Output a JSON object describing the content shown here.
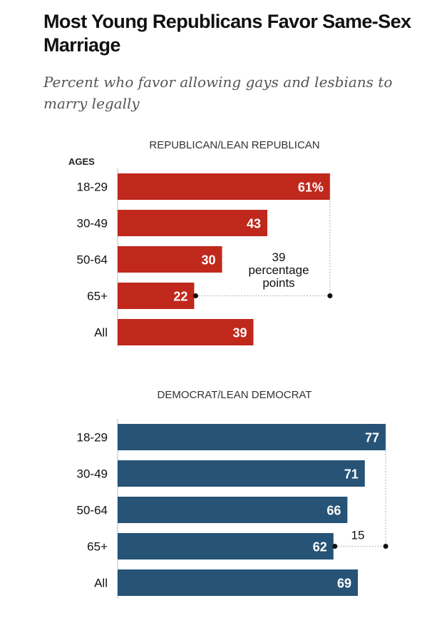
{
  "title": "Most Young Republicans Favor Same-Sex Marriage",
  "subtitle": "Percent who favor allowing gays and lesbians to marry legally",
  "chart_data": [
    {
      "type": "bar",
      "orientation": "horizontal",
      "title": "REPUBLICAN/LEAN REPUBLICAN",
      "category_axis_label": "AGES",
      "categories": [
        "18-29",
        "30-49",
        "50-64",
        "65+",
        "All"
      ],
      "values": [
        61,
        43,
        30,
        22,
        39
      ],
      "value_labels": [
        "61%",
        "43",
        "30",
        "22",
        "39"
      ],
      "color": "#c0281c",
      "annotation": {
        "from": "65+",
        "to": "18-29",
        "value": 39,
        "lines": [
          "39",
          "percentage",
          "points"
        ]
      }
    },
    {
      "type": "bar",
      "orientation": "horizontal",
      "title": "DEMOCRAT/LEAN DEMOCRAT",
      "categories": [
        "18-29",
        "30-49",
        "50-64",
        "65+",
        "All"
      ],
      "values": [
        77,
        71,
        66,
        62,
        69
      ],
      "value_labels": [
        "77",
        "71",
        "66",
        "62",
        "69"
      ],
      "color": "#265376",
      "annotation": {
        "from": "65+",
        "to": "18-29",
        "value": 15,
        "lines": [
          "15"
        ]
      }
    }
  ]
}
